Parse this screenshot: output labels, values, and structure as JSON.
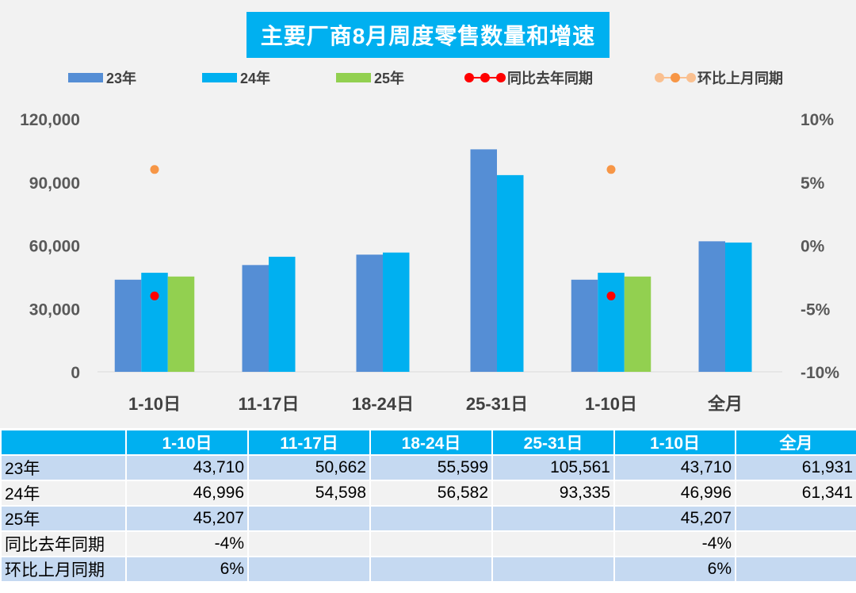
{
  "chart_data": {
    "type": "bar",
    "title": "主要厂商8月周度零售数量和增速",
    "categories": [
      "1-10日",
      "11-17日",
      "18-24日",
      "25-31日",
      "1-10日",
      "全月"
    ],
    "series": [
      {
        "name": "23年",
        "kind": "bar",
        "axis": "left",
        "color": "#558ed5",
        "values": [
          43710,
          50662,
          55599,
          105561,
          43710,
          61931
        ]
      },
      {
        "name": "24年",
        "kind": "bar",
        "axis": "left",
        "color": "#00b0f0",
        "values": [
          46996,
          54598,
          56582,
          93335,
          46996,
          61341
        ]
      },
      {
        "name": "25年",
        "kind": "bar",
        "axis": "left",
        "color": "#92d050",
        "values": [
          45207,
          null,
          null,
          null,
          45207,
          null
        ]
      },
      {
        "name": "同比去年同期",
        "kind": "scatter",
        "axis": "right",
        "color": "#ff0000",
        "values": [
          -4,
          null,
          null,
          null,
          -4,
          null
        ]
      },
      {
        "name": "环比上月同期",
        "kind": "scatter",
        "axis": "right",
        "color": "#f79646",
        "values": [
          6,
          null,
          null,
          null,
          6,
          null
        ]
      }
    ],
    "y_left": {
      "min": 0,
      "max": 120000,
      "ticks": [
        0,
        30000,
        60000,
        90000,
        120000
      ],
      "tick_labels": [
        "0",
        "30,000",
        "60,000",
        "90,000",
        "120,000"
      ]
    },
    "y_right": {
      "min": -10,
      "max": 10,
      "ticks": [
        -10,
        -5,
        0,
        5,
        10
      ],
      "tick_labels": [
        "-10%",
        "-5%",
        "0%",
        "5%",
        "10%"
      ]
    },
    "legend_position": "top",
    "grid": false
  },
  "table": {
    "headers": [
      "",
      "1-10日",
      "11-17日",
      "18-24日",
      "25-31日",
      "1-10日",
      "全月"
    ],
    "rows": [
      {
        "label": "23年",
        "cells": [
          "43,710",
          "50,662",
          "55,599",
          "105,561",
          "43,710",
          "61,931"
        ]
      },
      {
        "label": "24年",
        "cells": [
          "46,996",
          "54,598",
          "56,582",
          "93,335",
          "46,996",
          "61,341"
        ]
      },
      {
        "label": "25年",
        "cells": [
          "45,207",
          "",
          "",
          "",
          "45,207",
          ""
        ]
      },
      {
        "label": "同比去年同期",
        "cells": [
          "-4%",
          "",
          "",
          "",
          "-4%",
          ""
        ]
      },
      {
        "label": "环比上月同期",
        "cells": [
          "6%",
          "",
          "",
          "",
          "6%",
          ""
        ]
      }
    ]
  }
}
